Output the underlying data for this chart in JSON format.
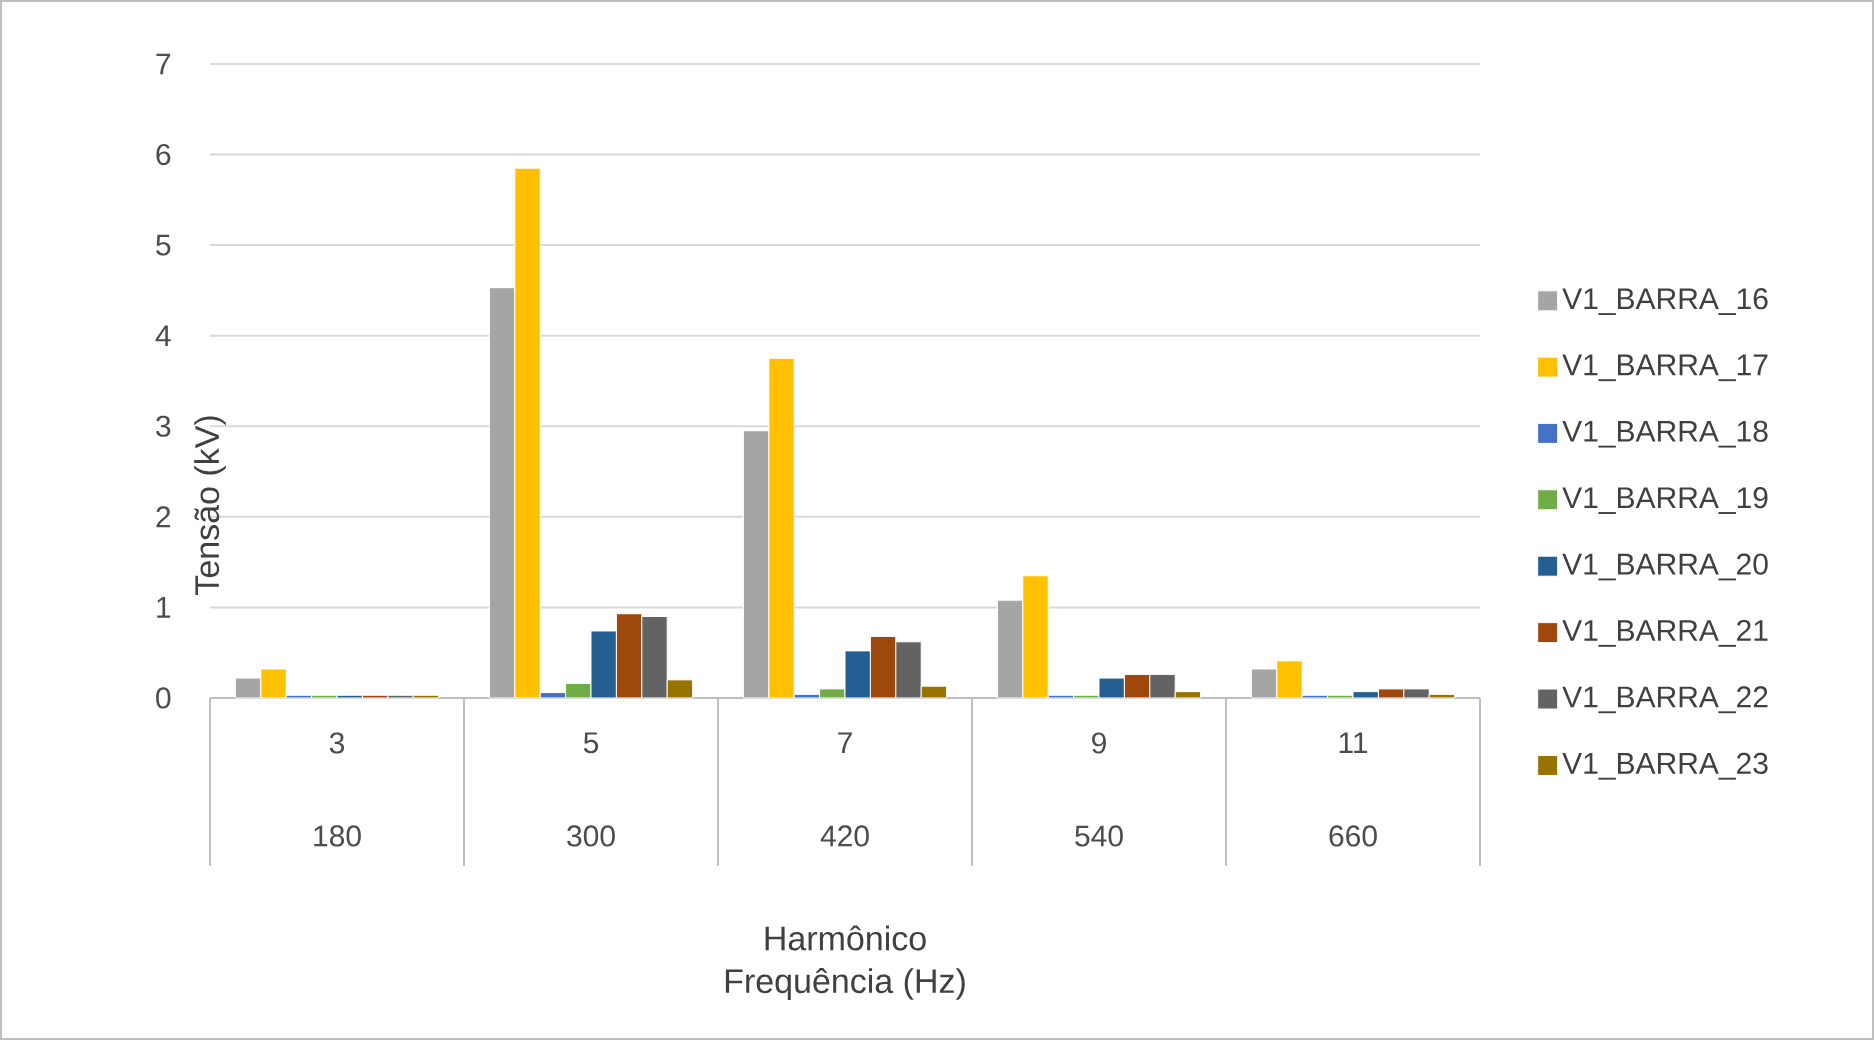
{
  "chart_data": {
    "type": "bar",
    "ylabel": "Tensão (kV)",
    "categories": [
      "3",
      "5",
      "7",
      "9",
      "11"
    ],
    "series": [
      {
        "name": "V1_BARRA_16",
        "color": "#a5a5a5",
        "values": [
          0.22,
          4.53,
          2.95,
          1.08,
          0.32
        ]
      },
      {
        "name": "V1_BARRA_17",
        "color": "#ffc000",
        "values": [
          0.32,
          5.85,
          3.75,
          1.35,
          0.41
        ]
      },
      {
        "name": "V1_BARRA_18",
        "color": "#4472c4",
        "values": [
          0.03,
          0.06,
          0.04,
          0.03,
          0.03
        ]
      },
      {
        "name": "V1_BARRA_19",
        "color": "#70ad47",
        "values": [
          0.03,
          0.16,
          0.1,
          0.03,
          0.03
        ]
      },
      {
        "name": "V1_BARRA_20",
        "color": "#255e91",
        "values": [
          0.03,
          0.74,
          0.52,
          0.22,
          0.07
        ]
      },
      {
        "name": "V1_BARRA_21",
        "color": "#9e480e",
        "values": [
          0.03,
          0.93,
          0.68,
          0.26,
          0.1
        ]
      },
      {
        "name": "V1_BARRA_22",
        "color": "#636363",
        "values": [
          0.03,
          0.9,
          0.62,
          0.26,
          0.1
        ]
      },
      {
        "name": "V1_BARRA_23",
        "color": "#997300",
        "values": [
          0.03,
          0.2,
          0.13,
          0.07,
          0.04
        ]
      }
    ],
    "annotations": [
      "180",
      "300",
      "420",
      "540",
      "660",
      "Harmônico",
      "Frequência (Hz)"
    ],
    "ylim": [
      0,
      7
    ],
    "yticks": [
      0,
      1,
      2,
      3,
      4,
      5,
      6,
      7
    ],
    "grid": "y",
    "legend": "right"
  }
}
